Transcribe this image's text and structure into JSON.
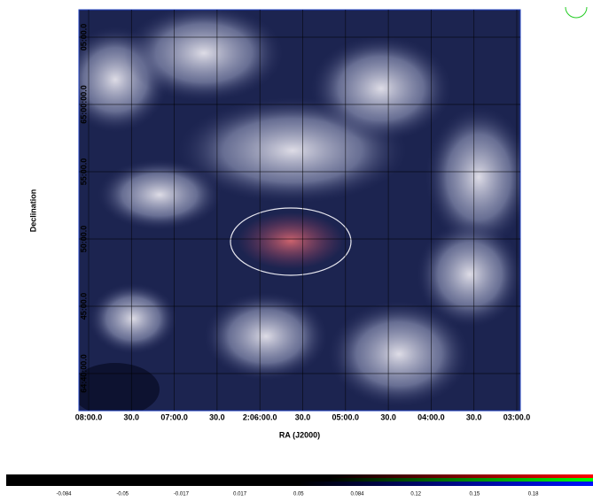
{
  "image": {
    "x_axis": {
      "label": "RA (J2000)",
      "ticks": [
        "08:00.0",
        "30.0",
        "07:00.0",
        "30.0",
        "2:06:00.0",
        "30.0",
        "05:00.0",
        "30.0",
        "04:00.0",
        "30.0",
        "03:00.0"
      ]
    },
    "y_axis": {
      "label": "Declination",
      "ticks": [
        "05:00.0",
        "65:00:00.0",
        "55:00.0",
        "50:00.0",
        "45:00.0",
        "64:40:00.0"
      ]
    },
    "colorbar": {
      "ticks": [
        -0.084,
        -0.05,
        -0.017,
        0.017,
        0.05,
        0.084,
        0.12,
        0.15,
        0.18
      ]
    }
  }
}
